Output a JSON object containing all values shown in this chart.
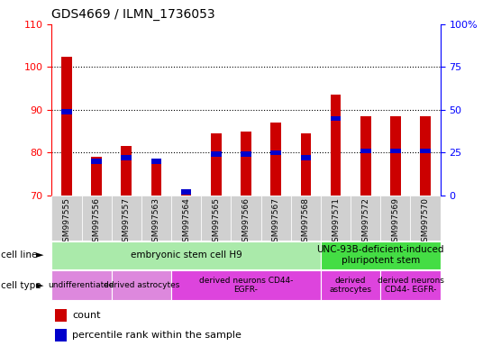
{
  "title": "GDS4669 / ILMN_1736053",
  "samples": [
    "GSM997555",
    "GSM997556",
    "GSM997557",
    "GSM997563",
    "GSM997564",
    "GSM997565",
    "GSM997566",
    "GSM997567",
    "GSM997568",
    "GSM997571",
    "GSM997572",
    "GSM997569",
    "GSM997570"
  ],
  "count_values": [
    102.5,
    79.0,
    81.5,
    78.5,
    70.5,
    84.5,
    85.0,
    87.0,
    84.5,
    93.5,
    88.5,
    88.5,
    88.5
  ],
  "percentile_values": [
    49,
    20,
    22,
    20,
    2,
    24,
    24,
    25,
    22,
    45,
    26,
    26,
    26
  ],
  "ylim_left": [
    70,
    110
  ],
  "ylim_right": [
    0,
    100
  ],
  "yticks_left": [
    70,
    80,
    90,
    100,
    110
  ],
  "yticks_right": [
    0,
    25,
    50,
    75,
    100
  ],
  "bar_color": "#cc0000",
  "percentile_color": "#0000cc",
  "bar_width": 0.35,
  "cell_line_spans": [
    {
      "label": "embryonic stem cell H9",
      "start": 0,
      "end": 9,
      "color": "#aaeaaa"
    },
    {
      "label": "UNC-93B-deficient-induced\npluripotent stem",
      "start": 9,
      "end": 13,
      "color": "#44dd44"
    }
  ],
  "cell_type_spans": [
    {
      "label": "undifferentiated",
      "start": 0,
      "end": 2,
      "color": "#dd88dd"
    },
    {
      "label": "derived astrocytes",
      "start": 2,
      "end": 4,
      "color": "#dd88dd"
    },
    {
      "label": "derived neurons CD44-\nEGFR-",
      "start": 4,
      "end": 9,
      "color": "#dd44dd"
    },
    {
      "label": "derived\nastrocytes",
      "start": 9,
      "end": 11,
      "color": "#dd44dd"
    },
    {
      "label": "derived neurons\nCD44- EGFR-",
      "start": 11,
      "end": 13,
      "color": "#dd44dd"
    }
  ],
  "legend_count_color": "#cc0000",
  "legend_percentile_color": "#0000cc"
}
